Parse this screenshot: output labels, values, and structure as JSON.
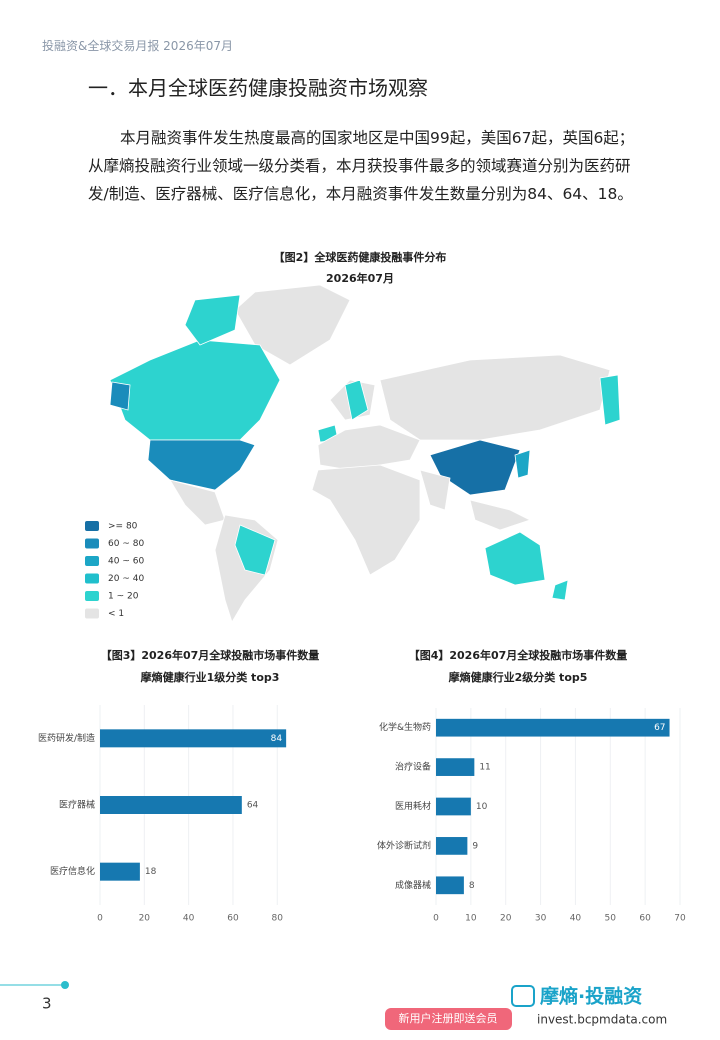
{
  "header": {
    "title": "投融资&全球交易月报  2026年07月"
  },
  "section": {
    "title": "一．本月全球医药健康投融资市场观察",
    "paragraph": "本月融资事件发生热度最高的国家地区是中国99起，美国67起，英国6起；从摩熵投融资行业领域一级分类看，本月获投事件最多的领域赛道分别为医药研发/制造、医疗器械、医疗信息化，本月融资事件发生数量分别为84、64、18。"
  },
  "figure2": {
    "title": "【图2】全球医药健康投融事件分布",
    "subtitle": "2026年07月",
    "legend": [
      {
        "label": ">= 80",
        "color": "#1670a6"
      },
      {
        "label": "60 ~ 80",
        "color": "#1a8cbb"
      },
      {
        "label": "40 ~ 60",
        "color": "#1ca6c6"
      },
      {
        "label": "20 ~ 40",
        "color": "#20bfcc"
      },
      {
        "label": "1 ~ 20",
        "color": "#2dd3cf"
      },
      {
        "label": "< 1",
        "color": "#e4e4e4"
      }
    ]
  },
  "chart_data": [
    {
      "type": "hbar",
      "title": "【图3】2026年07月全球投融市场事件数量",
      "subtitle": "摩熵健康行业1级分类 top3",
      "categories": [
        "医药研发/制造",
        "医疗器械",
        "医疗信息化"
      ],
      "values": [
        84,
        64,
        18
      ],
      "color": "#1678b0",
      "xlim": [
        0,
        88
      ],
      "xticks": [
        0,
        20,
        40,
        60,
        80
      ]
    },
    {
      "type": "hbar",
      "title": "【图4】2026年07月全球投融市场事件数量",
      "subtitle": "摩熵健康行业2级分类 top5",
      "categories": [
        "化学&生物药",
        "治疗设备",
        "医用耗材",
        "体外诊断试剂",
        "成像器械"
      ],
      "values": [
        67,
        11,
        10,
        9,
        8
      ],
      "color": "#1678b0",
      "xlim": [
        0,
        70
      ],
      "xticks": [
        0,
        10,
        20,
        30,
        40,
        50,
        60,
        70
      ]
    }
  ],
  "footer": {
    "page": "3",
    "brand": "摩熵·投融资",
    "url": "invest.bcpmdata.com",
    "promo": "新用户注册即送会员"
  }
}
